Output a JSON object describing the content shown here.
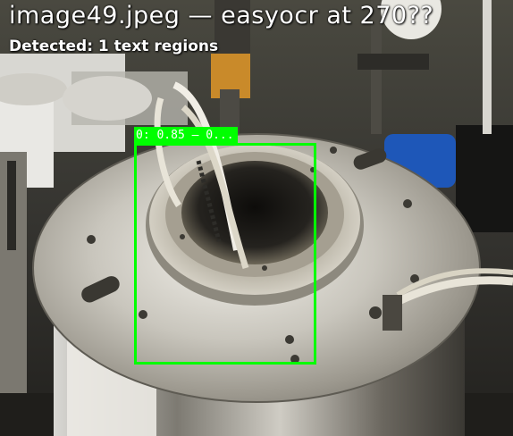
{
  "overlay": {
    "title": "image49.jpeg — easyocr at 270??",
    "summary": "Detected: 1 text regions"
  },
  "detections": [
    {
      "label": "0: 0.85 — 0..."
    }
  ],
  "colors": {
    "box": "#00ff00",
    "text": "#ffffff"
  }
}
